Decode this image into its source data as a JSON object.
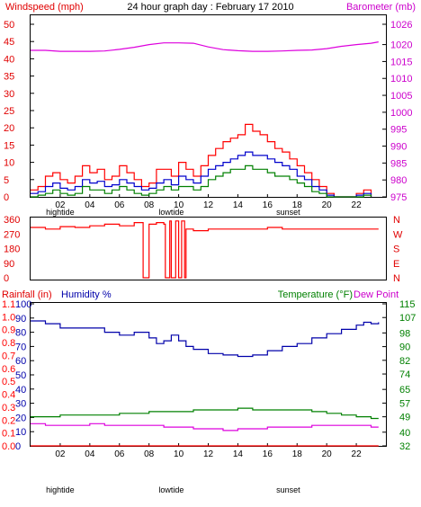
{
  "colors": {
    "wind_axis": "#e00000",
    "baro_axis": "#cc00cc",
    "wind_gust": "#ff0000",
    "wind_avg": "#0000cc",
    "wind_low": "#008000",
    "baro_line": "#dd00dd",
    "dir_line": "#ff0000",
    "humidity": "#0000aa",
    "temperature": "#008000",
    "dewpoint": "#dd00dd",
    "rain": "#ff0000",
    "frame": "#000000"
  },
  "chart_data": [
    {
      "type": "line",
      "title": "24 hour graph day : February 17 2010",
      "ylabel_left": "Windspeed (mph)",
      "ylabel_right": "Barometer (mb)",
      "x_ticks": [
        "02",
        "04",
        "06",
        "08",
        "10",
        "12",
        "14",
        "16",
        "18",
        "20",
        "22"
      ],
      "x_events": [
        {
          "label": "hightide",
          "hour": 2
        },
        {
          "label": "lowtide",
          "hour": 9.5
        },
        {
          "label": "sunset",
          "hour": 17.4
        }
      ],
      "ylim_left": [
        0,
        50
      ],
      "yticks_left": [
        0,
        5,
        10,
        15,
        20,
        25,
        30,
        35,
        40,
        45,
        50
      ],
      "ylim_right": [
        975,
        1026
      ],
      "yticks_right": [
        975,
        980,
        985,
        990,
        995,
        1000,
        1005,
        1010,
        1015,
        1020,
        1026
      ],
      "series": [
        {
          "key": "gust",
          "x": [
            0,
            0.5,
            1,
            1.5,
            2,
            2.5,
            3,
            3.5,
            4,
            4.5,
            5,
            5.5,
            6,
            6.5,
            7,
            7.5,
            8,
            8.5,
            9,
            9.5,
            10,
            10.5,
            11,
            11.5,
            12,
            12.5,
            13,
            13.5,
            14,
            14.5,
            15,
            15.5,
            16,
            16.5,
            17,
            17.5,
            18,
            18.5,
            19,
            19.5,
            20,
            20.5,
            21,
            21.5,
            22,
            22.5,
            23
          ],
          "values": [
            2,
            3,
            6,
            7,
            5,
            4,
            6,
            9,
            7,
            8,
            5,
            6,
            9,
            7,
            5,
            3,
            4,
            8,
            8,
            6,
            10,
            8,
            6,
            9,
            12,
            14,
            16,
            17,
            18,
            21,
            19,
            18,
            16,
            14,
            13,
            11,
            9,
            7,
            5,
            3,
            1,
            0,
            0,
            0,
            1,
            2,
            0
          ]
        },
        {
          "key": "average",
          "x": [
            0,
            0.5,
            1,
            1.5,
            2,
            2.5,
            3,
            3.5,
            4,
            4.5,
            5,
            5.5,
            6,
            6.5,
            7,
            7.5,
            8,
            8.5,
            9,
            9.5,
            10,
            10.5,
            11,
            11.5,
            12,
            12.5,
            13,
            13.5,
            14,
            14.5,
            15,
            15.5,
            16,
            16.5,
            17,
            17.5,
            18,
            18.5,
            19,
            19.5,
            20,
            20.5,
            21,
            21.5,
            22,
            22.5,
            23
          ],
          "values": [
            1,
            1.5,
            3,
            4,
            2.5,
            2,
            3,
            5,
            4,
            4.5,
            3,
            3.5,
            5,
            4,
            3,
            2,
            2.5,
            4,
            5,
            3.5,
            6,
            5,
            4,
            6,
            8,
            9,
            10,
            11,
            12,
            13,
            12,
            12,
            11,
            10,
            9,
            8,
            6,
            5,
            3,
            2,
            0.5,
            0,
            0,
            0,
            0.5,
            1,
            0
          ]
        },
        {
          "key": "lowest",
          "x": [
            0,
            0.5,
            1,
            1.5,
            2,
            2.5,
            3,
            3.5,
            4,
            4.5,
            5,
            5.5,
            6,
            6.5,
            7,
            7.5,
            8,
            8.5,
            9,
            9.5,
            10,
            10.5,
            11,
            11.5,
            12,
            12.5,
            13,
            13.5,
            14,
            14.5,
            15,
            15.5,
            16,
            16.5,
            17,
            17.5,
            18,
            18.5,
            19,
            19.5,
            20,
            20.5,
            21,
            21.5,
            22,
            22.5,
            23
          ],
          "values": [
            0,
            0.5,
            1,
            2,
            1,
            0.5,
            1,
            3,
            2,
            2,
            1,
            2,
            3,
            2,
            1,
            0.5,
            1,
            2,
            3,
            2,
            3,
            3,
            2,
            3,
            5,
            6,
            7,
            8,
            8,
            9,
            8,
            8,
            7,
            6,
            6,
            5,
            4,
            3,
            1.5,
            1,
            0,
            0,
            0,
            0,
            0,
            0.5,
            0
          ]
        },
        {
          "key": "barometer",
          "axis": "right",
          "x": [
            0,
            1,
            2,
            3,
            4,
            5,
            6,
            7,
            8,
            9,
            10,
            11,
            12,
            13,
            14,
            15,
            16,
            17,
            18,
            19,
            20,
            21,
            22,
            23,
            23.5
          ],
          "values": [
            1018.3,
            1018.3,
            1018.0,
            1018.0,
            1018.0,
            1018.1,
            1018.6,
            1019.2,
            1020.0,
            1020.5,
            1020.5,
            1020.4,
            1019.3,
            1018.5,
            1018.2,
            1018.0,
            1018.0,
            1018.1,
            1018.3,
            1018.4,
            1018.8,
            1019.5,
            1020.0,
            1020.4,
            1020.8
          ]
        }
      ]
    },
    {
      "type": "line",
      "ylim": [
        0,
        360
      ],
      "yticks": [
        0,
        90,
        180,
        270,
        360
      ],
      "direction_labels": [
        "N",
        "W",
        "S",
        "E",
        "N"
      ],
      "x_ticks": [
        "02",
        "04",
        "06",
        "08",
        "10",
        "12",
        "14",
        "16",
        "18",
        "20",
        "22"
      ],
      "series": [
        {
          "key": "wind_direction",
          "x": [
            0,
            1,
            2,
            3,
            4,
            5,
            6,
            7,
            7.5,
            7.6,
            8,
            8.5,
            9,
            9.1,
            9.4,
            9.5,
            9.8,
            10,
            10.2,
            10.4,
            10.5,
            11,
            12,
            13,
            14,
            15,
            16,
            17,
            18,
            19,
            20,
            21,
            22,
            23,
            23.5
          ],
          "values": [
            310,
            300,
            315,
            310,
            320,
            330,
            320,
            340,
            340,
            0,
            330,
            340,
            330,
            0,
            350,
            0,
            350,
            0,
            350,
            0,
            300,
            290,
            300,
            300,
            300,
            300,
            310,
            300,
            300,
            300,
            300,
            300,
            300,
            300,
            300
          ]
        }
      ]
    },
    {
      "type": "line",
      "ylabel_left_1": "Rainfall (in)",
      "ylabel_left_2": "Humidity %",
      "ylabel_right_1": "Temperature (°F)",
      "ylabel_right_2": "Dew Point",
      "x_ticks": [
        "02",
        "04",
        "06",
        "08",
        "10",
        "12",
        "14",
        "16",
        "18",
        "20",
        "22"
      ],
      "x_events": [
        {
          "label": "hightide",
          "hour": 2
        },
        {
          "label": "lowtide",
          "hour": 9.5
        },
        {
          "label": "sunset",
          "hour": 17.4
        }
      ],
      "ylim_humidity": [
        0,
        100
      ],
      "yticks_humidity": [
        0,
        10,
        20,
        30,
        40,
        50,
        60,
        70,
        80,
        90,
        100
      ],
      "ylim_rain": [
        0,
        1.1
      ],
      "yticks_rain": [
        0.0,
        0.1,
        0.2,
        0.3,
        0.4,
        0.5,
        0.6,
        0.7,
        0.8,
        0.9,
        1.0,
        1.1
      ],
      "ylim_temp": [
        32,
        115
      ],
      "yticks_temp": [
        32,
        40,
        49,
        57,
        65,
        74,
        82,
        90,
        98,
        107,
        115
      ],
      "series": [
        {
          "key": "humidity",
          "axis": "humidity",
          "x": [
            0,
            1,
            2,
            3,
            4,
            5,
            6,
            7,
            8,
            8.5,
            9,
            9.5,
            10,
            10.5,
            11,
            12,
            13,
            14,
            15,
            16,
            17,
            18,
            19,
            20,
            21,
            22,
            22.5,
            23,
            23.5
          ],
          "values": [
            88,
            86,
            83,
            83,
            83,
            80,
            78,
            80,
            76,
            72,
            74,
            78,
            74,
            70,
            68,
            65,
            64,
            63,
            64,
            67,
            70,
            72,
            76,
            79,
            82,
            85,
            87,
            86,
            87
          ]
        },
        {
          "key": "temperature",
          "axis": "temp",
          "x": [
            0,
            1,
            2,
            3,
            4,
            5,
            6,
            7,
            8,
            9,
            10,
            11,
            12,
            13,
            14,
            15,
            16,
            17,
            18,
            19,
            20,
            21,
            22,
            23,
            23.5
          ],
          "values": [
            49,
            49,
            50,
            50,
            50,
            50,
            51,
            51,
            52,
            52,
            52,
            53,
            53,
            53,
            54,
            53,
            53,
            53,
            53,
            52,
            51,
            50,
            49,
            48,
            48
          ]
        },
        {
          "key": "dewpoint",
          "axis": "temp",
          "x": [
            0,
            1,
            2,
            3,
            4,
            5,
            6,
            7,
            8,
            9,
            10,
            11,
            12,
            13,
            14,
            15,
            16,
            17,
            18,
            19,
            20,
            21,
            22,
            23,
            23.5
          ],
          "values": [
            45,
            44,
            44,
            44,
            45,
            44,
            44,
            44,
            44,
            43,
            43,
            42,
            42,
            41,
            42,
            42,
            43,
            43,
            43,
            44,
            44,
            44,
            44,
            43,
            43
          ]
        },
        {
          "key": "rainfall",
          "axis": "rain",
          "x": [
            0,
            23.5
          ],
          "values": [
            0.0,
            0.0
          ]
        }
      ]
    }
  ]
}
